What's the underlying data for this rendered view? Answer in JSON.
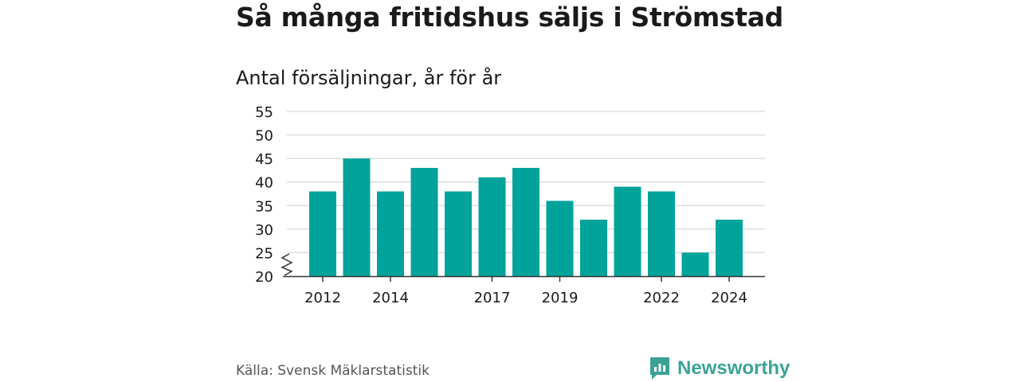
{
  "title": "Så många fritidshus säljs i Strömstad",
  "subtitle": "Antal försäljningar, år för år",
  "source": "Källa: Svensk Mäklarstatistik",
  "brand": {
    "name": "Newsworthy",
    "icon": "newsworthy-logo-icon",
    "color": "#3aa396"
  },
  "chart_data": {
    "type": "bar",
    "categories": [
      "2012",
      "2013",
      "2014",
      "2015",
      "2016",
      "2017",
      "2018",
      "2019",
      "2020",
      "2021",
      "2022",
      "2023",
      "2024"
    ],
    "values": [
      38,
      45,
      38,
      43,
      38,
      41,
      43,
      36,
      32,
      39,
      38,
      25,
      32
    ],
    "x_tick_labels": [
      "2012",
      "2014",
      "2017",
      "2019",
      "2022",
      "2024"
    ],
    "y_ticks": [
      20,
      25,
      30,
      35,
      40,
      45,
      50,
      55
    ],
    "ylim": [
      20,
      55
    ],
    "y_axis_break": true,
    "grid": true,
    "bar_color": "#00a39a",
    "grid_color": "#dddddd",
    "axis_color": "#333333"
  }
}
